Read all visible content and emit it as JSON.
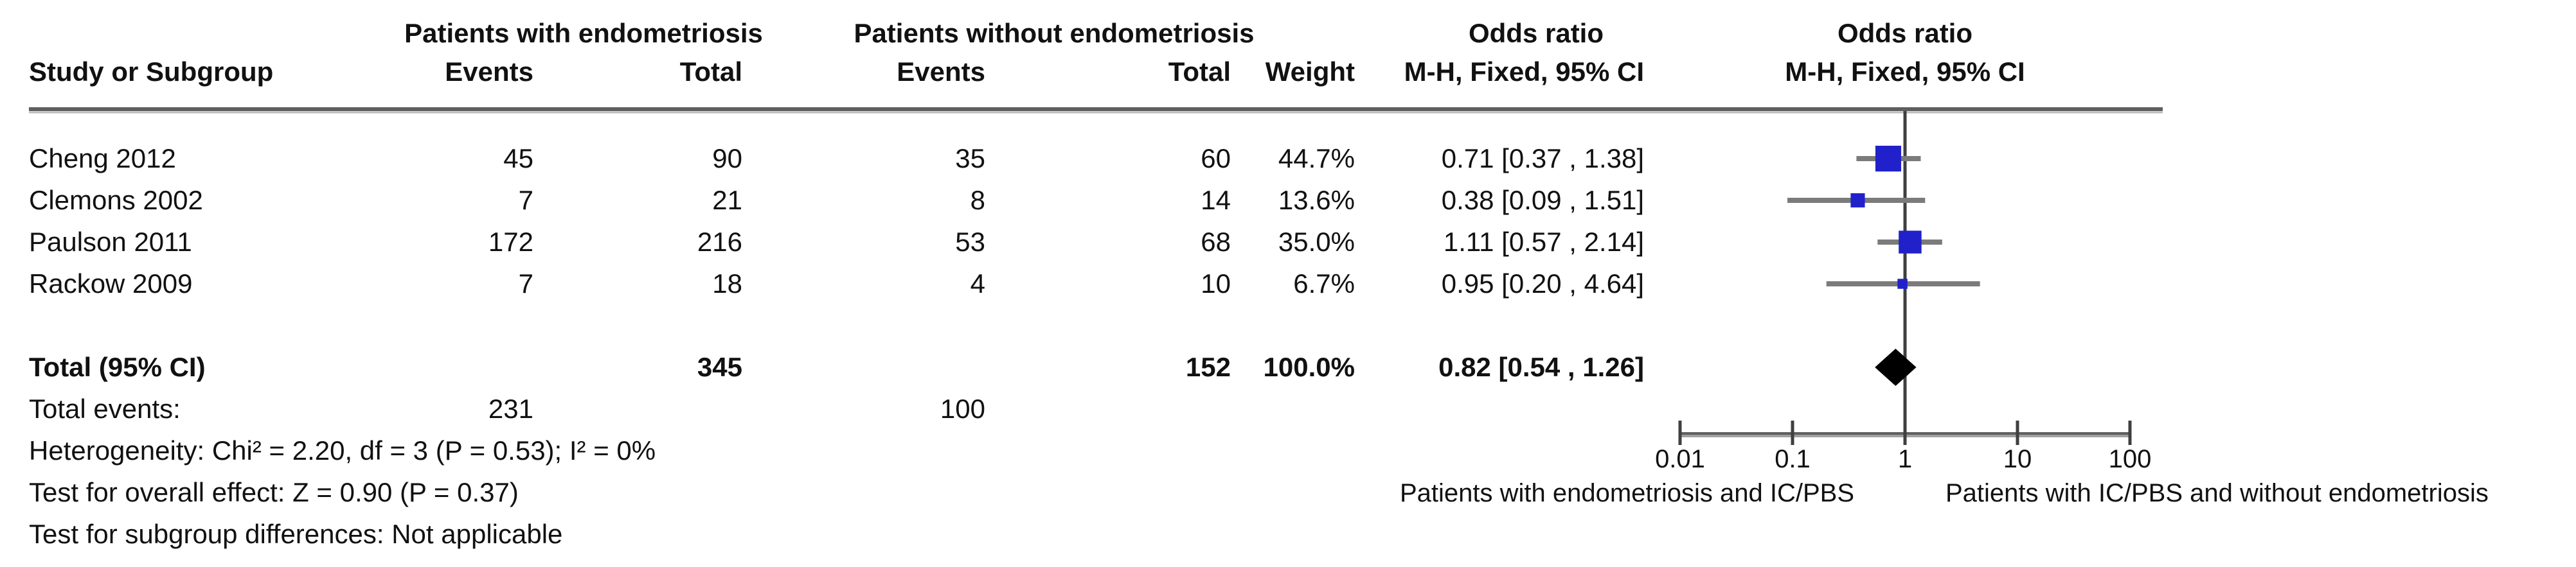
{
  "table": {
    "group_headers": {
      "with": "Patients with endometriosis",
      "without": "Patients without endometriosis"
    },
    "or_text_header": {
      "line1": "Odds ratio",
      "line2": "M-H, Fixed, 95% CI"
    },
    "or_plot_header": {
      "line1": "Odds ratio",
      "line2": "M-H, Fixed, 95% CI"
    },
    "column_headers": {
      "study": "Study or Subgroup",
      "events1": "Events",
      "total1": "Total",
      "events2": "Events",
      "total2": "Total",
      "weight": "Weight"
    },
    "rows": [
      {
        "study": "Cheng 2012",
        "events1": "45",
        "total1": "90",
        "events2": "35",
        "total2": "60",
        "weight": "44.7%",
        "or_ci": "0.71 [0.37 , 1.38]"
      },
      {
        "study": "Clemons 2002",
        "events1": "7",
        "total1": "21",
        "events2": "8",
        "total2": "14",
        "weight": "13.6%",
        "or_ci": "0.38 [0.09 , 1.51]"
      },
      {
        "study": "Paulson 2011",
        "events1": "172",
        "total1": "216",
        "events2": "53",
        "total2": "68",
        "weight": "35.0%",
        "or_ci": "1.11 [0.57 , 2.14]"
      },
      {
        "study": "Rackow 2009",
        "events1": "7",
        "total1": "18",
        "events2": "4",
        "total2": "10",
        "weight": "6.7%",
        "or_ci": "0.95 [0.20 , 4.64]"
      }
    ],
    "total_row": {
      "label": "Total (95% CI)",
      "total1": "345",
      "total2": "152",
      "weight": "100.0%",
      "or_ci": "0.82 [0.54 , 1.26]"
    },
    "total_events": {
      "label": "Total events:",
      "value1": "231",
      "value2": "100"
    },
    "footnotes": [
      "Heterogeneity: Chi² = 2.20, df = 3 (P = 0.53); I² = 0%",
      "Test for overall effect: Z = 0.90 (P = 0.37)",
      "Test for subgroup differences: Not applicable"
    ]
  },
  "chart_data": {
    "type": "forest",
    "x_scale": "log10",
    "xlim": [
      0.01,
      100
    ],
    "axis_ticks": [
      0.01,
      0.1,
      1,
      10,
      100
    ],
    "axis_tick_labels": [
      "0.01",
      "0.1",
      "1",
      "10",
      "100"
    ],
    "null_line_value": 1,
    "effect_measure": "Odds ratio, M-H, Fixed, 95% CI",
    "studies": [
      {
        "name": "Cheng 2012",
        "or": 0.71,
        "ci_low": 0.37,
        "ci_high": 1.38,
        "weight_pct": 44.7
      },
      {
        "name": "Clemons 2002",
        "or": 0.38,
        "ci_low": 0.09,
        "ci_high": 1.51,
        "weight_pct": 13.6
      },
      {
        "name": "Paulson 2011",
        "or": 1.11,
        "ci_low": 0.57,
        "ci_high": 2.14,
        "weight_pct": 35.0
      },
      {
        "name": "Rackow 2009",
        "or": 0.95,
        "ci_low": 0.2,
        "ci_high": 4.64,
        "weight_pct": 6.7
      }
    ],
    "total": {
      "name": "Total (95% CI)",
      "or": 0.82,
      "ci_low": 0.54,
      "ci_high": 1.26,
      "weight_pct": 100.0
    },
    "caption_left": "Patients with endometriosis and IC/PBS",
    "caption_right": "Patients with IC/PBS and without endometriosis",
    "colors": {
      "square": "#2121cc",
      "diamond": "#000000",
      "ci_line": "#7b7b7b",
      "axis": "#6b6b6b",
      "null_line": "#3f3f3f"
    }
  }
}
